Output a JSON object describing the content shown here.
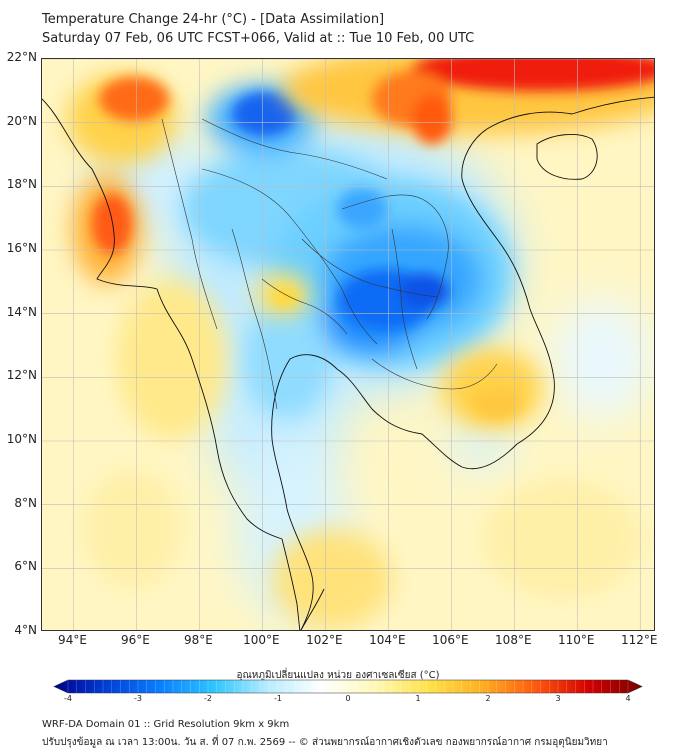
{
  "title": {
    "line1": "Temperature Change 24-hr (°C) - [Data Assimilation]",
    "line2": "Saturday 07 Feb, 06 UTC FCST+066, Valid at :: Tue 10 Feb, 00 UTC"
  },
  "map": {
    "lat_labels": [
      "22°N",
      "20°N",
      "18°N",
      "16°N",
      "14°N",
      "12°N",
      "10°N",
      "8°N",
      "6°N",
      "4°N"
    ],
    "lon_labels": [
      "94°E",
      "96°E",
      "98°E",
      "100°E",
      "102°E",
      "104°E",
      "106°E",
      "108°E",
      "110°E",
      "112°E"
    ],
    "lat_values": [
      22,
      20,
      18,
      16,
      14,
      12,
      10,
      8,
      6,
      4
    ],
    "lon_values": [
      94,
      96,
      98,
      100,
      102,
      104,
      106,
      108,
      110,
      112
    ],
    "lat_range": [
      4,
      22
    ],
    "lon_range": [
      93,
      112.5
    ],
    "warm_regions": [
      {
        "lat": 21.0,
        "lon": 96.0,
        "value": 2.4
      },
      {
        "lat": 16.8,
        "lon": 95.0,
        "value": 2.6
      },
      {
        "lat": 21.8,
        "lon": 109.0,
        "value": 3.0
      },
      {
        "lat": 20.8,
        "lon": 105.6,
        "value": 2.4
      },
      {
        "lat": 14.6,
        "lon": 100.6,
        "value": 1.2
      },
      {
        "lat": 10.9,
        "lon": 106.8,
        "value": 1.5
      }
    ],
    "cold_regions": [
      {
        "lat": 20.5,
        "lon": 100.2,
        "value": -2.4
      },
      {
        "lat": 14.8,
        "lon": 103.5,
        "value": -2.6
      },
      {
        "lat": 16.6,
        "lon": 104.5,
        "value": -1.8
      }
    ]
  },
  "colorbar": {
    "title": "อุณหภูมิเปลี่ยนแปลง หน่วย องศาเซลเซียส (°C)",
    "tick_labels": [
      "-4",
      "-3",
      "-2",
      "-1",
      "0",
      "1",
      "2",
      "3",
      "4"
    ],
    "tick_values": [
      -4,
      -3,
      -2,
      -1,
      0,
      1,
      2,
      3,
      4
    ],
    "range": [
      -4,
      4
    ],
    "colors": [
      "#00008b",
      "#0040d8",
      "#0a80ff",
      "#2ec6ff",
      "#b8ecff",
      "#ffffff",
      "#fff8b8",
      "#ffe24a",
      "#ffb020",
      "#ff5a10",
      "#d40000",
      "#7a0000"
    ]
  },
  "footer": {
    "line1": "WRF-DA Domain 01 :: Grid Resolution 9km x 9km",
    "line2": "ปรับปรุงข้อมูล ณ เวลา 13:00น. วัน ส. ที่ 07 ก.พ. 2569 -- © ส่วนพยากรณ์อากาศเชิงตัวเลข กองพยากรณ์อากาศ กรมอุตุนิยมวิทยา"
  }
}
